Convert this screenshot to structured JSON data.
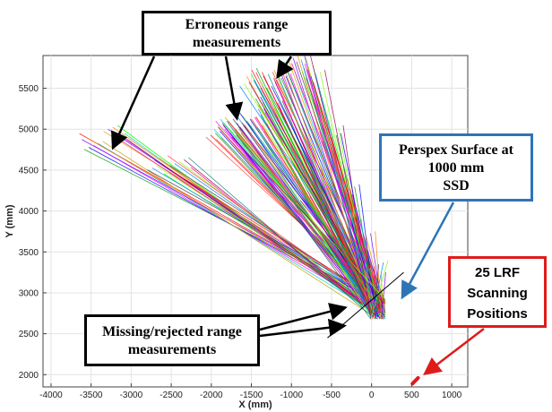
{
  "chart_data": {
    "type": "line",
    "xlabel": "X (mm)",
    "ylabel": "Y (mm)",
    "xlim": [
      -4100,
      1200
    ],
    "ylim": [
      1850,
      5900
    ],
    "x_ticks": [
      -4000,
      -3500,
      -3000,
      -2500,
      -2000,
      -1500,
      -1000,
      -500,
      0,
      500,
      1000
    ],
    "y_ticks": [
      2000,
      2500,
      3000,
      3500,
      4000,
      4500,
      5000,
      5500
    ],
    "grid": true,
    "scan_origin": [
      80,
      2800
    ],
    "fan_endpoints": [
      [
        -3500,
        4850
      ],
      [
        -3200,
        4950
      ],
      [
        -2650,
        4550
      ],
      [
        -2400,
        4580
      ],
      [
        -1950,
        5000
      ],
      [
        -1850,
        4950
      ],
      [
        -1800,
        5050
      ],
      [
        -1700,
        5100
      ],
      [
        -1600,
        5000
      ],
      [
        -1500,
        5150
      ],
      [
        -1400,
        5050
      ],
      [
        -1300,
        5300
      ],
      [
        -1200,
        5250
      ],
      [
        -1500,
        5600
      ],
      [
        -1350,
        5650
      ],
      [
        -1250,
        5600
      ],
      [
        -1100,
        5700
      ],
      [
        -950,
        5800
      ],
      [
        -850,
        5850
      ],
      [
        -700,
        5650
      ],
      [
        -500,
        4950
      ],
      [
        -300,
        4300
      ],
      [
        -100,
        3800
      ],
      [
        60,
        3300
      ],
      [
        -800,
        4200
      ]
    ],
    "perspex_surface": [
      [
        -550,
        2450
      ],
      [
        400,
        3250
      ]
    ],
    "lrf_positions": [
      [
        510,
        1890
      ],
      [
        580,
        1960
      ]
    ],
    "callouts": {
      "erroneous": {
        "line1": "Erroneous range",
        "line2": "measurements",
        "color": "#000000"
      },
      "missing": {
        "line1": "Missing/rejected range",
        "line2": "measurements",
        "color": "#000000"
      },
      "perspex": {
        "line1": "Perspex Surface at",
        "line2": "1000 mm",
        "line3": "SSD",
        "color": "#2e75b6"
      },
      "lrf": {
        "line1": "25 LRF",
        "line2": "Scanning",
        "line3": "Positions",
        "color": "#e01b1b"
      }
    }
  }
}
